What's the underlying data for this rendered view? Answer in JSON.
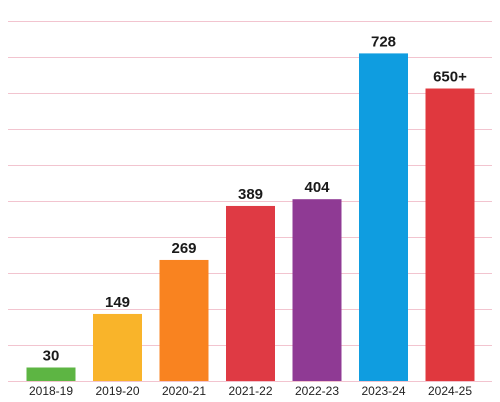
{
  "chart_data": {
    "type": "bar",
    "title": "",
    "xlabel": "",
    "ylabel": "",
    "categories": [
      "2018-19",
      "2019-20",
      "2020-21",
      "2021-22",
      "2022-23",
      "2023-24",
      "2024-25"
    ],
    "values": [
      30,
      149,
      269,
      389,
      404,
      728,
      650
    ],
    "data_labels": [
      "30",
      "149",
      "269",
      "389",
      "404",
      "728",
      "650+"
    ],
    "colors": [
      "#5db543",
      "#f9b42a",
      "#f98320",
      "#df3a44",
      "#8f3a94",
      "#0f9de0",
      "#e0383e"
    ],
    "ylim": [
      0,
      800
    ],
    "grid": true,
    "grid_color": "#f2c4cf",
    "legend": "none"
  }
}
